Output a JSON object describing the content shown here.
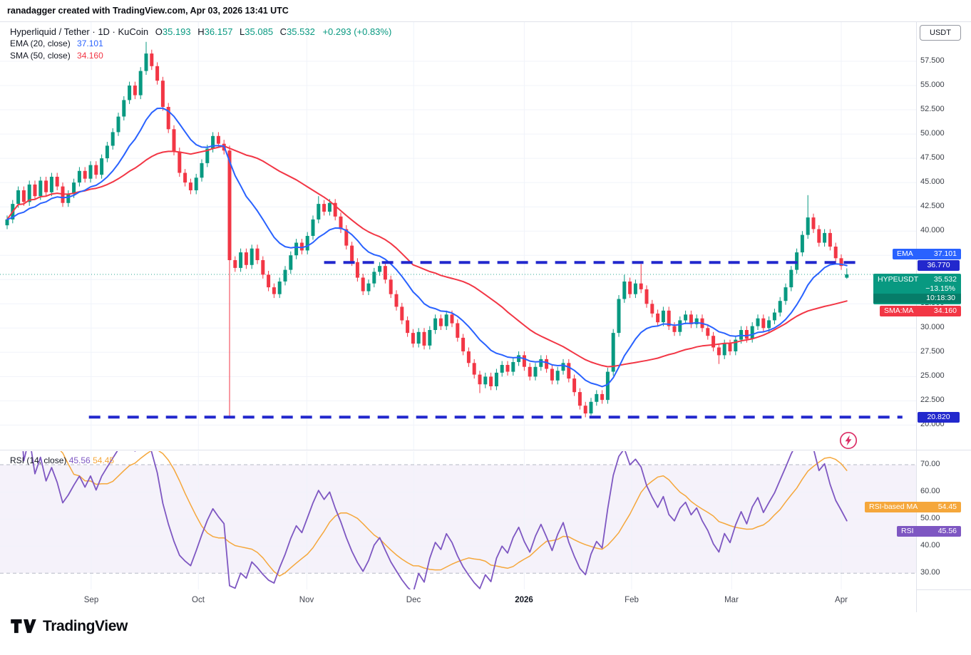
{
  "header": {
    "attribution": "ranadagger created with TradingView.com, Apr 03, 2026 13:41 UTC"
  },
  "legend": {
    "symbol_title": "Hyperliquid / Tether · 1D · KuCoin",
    "ohlc": {
      "o_label": "O",
      "o": "35.193",
      "h_label": "H",
      "h": "36.157",
      "l_label": "L",
      "l": "35.085",
      "c_label": "C",
      "c": "35.532",
      "change": "+0.293 (+0.83%)"
    },
    "ema": {
      "label": "EMA (20, close)",
      "value": "37.101"
    },
    "sma": {
      "label": "SMA (50, close)",
      "value": "34.160"
    }
  },
  "rsi_legend": {
    "label": "RSI (14, close)",
    "rsi_value": "45.56",
    "ma_value": "54.45"
  },
  "axis": {
    "currency": "USDT",
    "price_ticks": [
      "57.500",
      "55.000",
      "52.500",
      "50.000",
      "47.500",
      "45.000",
      "42.500",
      "40.000",
      "37.500",
      "35.000",
      "32.500",
      "30.000",
      "27.500",
      "25.000",
      "22.500",
      "20.000"
    ],
    "rsi_ticks": [
      "70.00",
      "60.00",
      "50.00",
      "40.00",
      "30.00"
    ],
    "tags": {
      "ema": {
        "label": "EMA",
        "value": "37.101"
      },
      "resistance": {
        "value": "36.770"
      },
      "last": {
        "symbol": "HYPEUSDT",
        "price": "35.532",
        "change": "−13.15%",
        "countdown": "10:18:30"
      },
      "sma": {
        "label": "SMA:MA",
        "value": "34.160"
      },
      "support": {
        "value": "20.820"
      },
      "rsi_ma": {
        "label": "RSI-based MA",
        "value": "54.45"
      },
      "rsi": {
        "label": "RSI",
        "value": "45.56"
      }
    }
  },
  "time_axis": {
    "months": [
      {
        "label": "Sep",
        "i": 15.1
      },
      {
        "label": "Oct",
        "i": 34.4
      },
      {
        "label": "Nov",
        "i": 53.9
      },
      {
        "label": "Dec",
        "i": 73.1
      },
      {
        "label": "2026",
        "i": 93.0,
        "major": true
      },
      {
        "label": "Feb",
        "i": 112.3
      },
      {
        "label": "Mar",
        "i": 130.3
      },
      {
        "label": "Apr",
        "i": 150.0
      }
    ]
  },
  "colors": {
    "up": "#089981",
    "down": "#F23645",
    "ema_line": "#2962FF",
    "sma_line": "#F23645",
    "sr_line": "#2228CD",
    "rsi_line": "#7E57C2",
    "rsi_ma_line": "#F5A73B",
    "flash": "#DB2E66",
    "grid": "#F0F3FA"
  },
  "footer": {
    "brand": "TradingView"
  },
  "chart_data": {
    "type": "candlestick",
    "symbol": "HYPEUSDT",
    "exchange": "KuCoin",
    "interval": "1D",
    "ylim": [
      17.46,
      61.54
    ],
    "price_gridlines": [
      57.5,
      55,
      52.5,
      50,
      47.5,
      45,
      42.5,
      40,
      37.5,
      35,
      32.5,
      30,
      27.5,
      25,
      22.5,
      20
    ],
    "last_price": 35.532,
    "overlays": [
      {
        "name": "EMA",
        "period": 20,
        "last": 37.101
      },
      {
        "name": "SMA",
        "period": 50,
        "last": 34.16
      }
    ],
    "ema_span_candles": 14,
    "sma_span_candles": 34,
    "drawn_lines": [
      {
        "name": "resistance",
        "price": 36.77,
        "from_i": 57,
        "to_i": 153.5
      },
      {
        "name": "support",
        "price": 20.82,
        "from_i": 14.7,
        "to_i": 161
      }
    ],
    "candles": [
      [
        40.6,
        41.6,
        40.2,
        41.2
      ],
      [
        41.2,
        43.2,
        40.8,
        42.8
      ],
      [
        42.8,
        44.6,
        42.4,
        44.2
      ],
      [
        44.2,
        44.6,
        42.6,
        43.0
      ],
      [
        43.0,
        45.2,
        42.6,
        44.8
      ],
      [
        44.8,
        45.2,
        43.2,
        43.6
      ],
      [
        43.6,
        45.6,
        43.2,
        45.2
      ],
      [
        45.2,
        45.6,
        43.6,
        44.0
      ],
      [
        44.0,
        46.0,
        43.6,
        45.6
      ],
      [
        45.6,
        46.0,
        44.2,
        44.6
      ],
      [
        44.6,
        45.0,
        42.5,
        42.9
      ],
      [
        42.9,
        44.2,
        42.5,
        43.8
      ],
      [
        43.8,
        45.4,
        43.4,
        45.0
      ],
      [
        45.0,
        46.6,
        44.6,
        46.2
      ],
      [
        46.2,
        46.6,
        45.0,
        45.4
      ],
      [
        45.4,
        47.2,
        45.0,
        46.8
      ],
      [
        46.8,
        47.2,
        45.4,
        45.8
      ],
      [
        45.8,
        47.9,
        45.4,
        47.5
      ],
      [
        47.5,
        49.2,
        47.1,
        48.8
      ],
      [
        48.8,
        50.6,
        48.4,
        50.2
      ],
      [
        50.2,
        52.2,
        49.8,
        51.8
      ],
      [
        51.8,
        53.9,
        51.4,
        53.5
      ],
      [
        53.5,
        55.4,
        53.1,
        55.0
      ],
      [
        55.0,
        55.4,
        53.6,
        54.0
      ],
      [
        54.0,
        56.9,
        53.6,
        56.5
      ],
      [
        56.5,
        59.5,
        56.1,
        58.3
      ],
      [
        58.3,
        58.7,
        56.6,
        57.0
      ],
      [
        57.0,
        57.4,
        55.1,
        55.5
      ],
      [
        55.5,
        55.9,
        52.4,
        52.8
      ],
      [
        52.8,
        53.2,
        50.1,
        50.5
      ],
      [
        50.5,
        50.9,
        47.8,
        48.2
      ],
      [
        48.2,
        48.6,
        45.6,
        46.0
      ],
      [
        46.0,
        46.4,
        44.6,
        45.0
      ],
      [
        45.0,
        45.4,
        43.8,
        44.2
      ],
      [
        44.2,
        45.9,
        43.8,
        45.5
      ],
      [
        45.5,
        47.4,
        45.1,
        47.0
      ],
      [
        47.0,
        48.9,
        46.6,
        48.5
      ],
      [
        48.5,
        50.2,
        48.1,
        49.8
      ],
      [
        49.8,
        50.2,
        48.6,
        49.0
      ],
      [
        49.0,
        49.4,
        47.9,
        48.3
      ],
      [
        48.3,
        48.8,
        20.9,
        37.0
      ],
      [
        37.0,
        37.4,
        35.8,
        36.2
      ],
      [
        36.2,
        38.2,
        35.8,
        37.8
      ],
      [
        37.8,
        38.2,
        36.1,
        36.5
      ],
      [
        36.5,
        38.6,
        36.1,
        38.2
      ],
      [
        38.2,
        38.6,
        36.6,
        37.0
      ],
      [
        37.0,
        37.4,
        35.1,
        35.5
      ],
      [
        35.5,
        35.9,
        33.8,
        34.2
      ],
      [
        34.2,
        34.6,
        33.1,
        33.5
      ],
      [
        33.5,
        35.2,
        33.1,
        34.8
      ],
      [
        34.8,
        36.4,
        34.4,
        36.0
      ],
      [
        36.0,
        37.9,
        35.6,
        37.5
      ],
      [
        37.5,
        39.2,
        37.1,
        38.8
      ],
      [
        38.8,
        39.2,
        37.6,
        38.0
      ],
      [
        38.0,
        39.9,
        37.6,
        39.5
      ],
      [
        39.5,
        41.6,
        39.1,
        41.2
      ],
      [
        41.2,
        43.6,
        40.8,
        42.8
      ],
      [
        42.8,
        43.2,
        41.6,
        42.0
      ],
      [
        42.0,
        43.3,
        41.6,
        42.9
      ],
      [
        42.9,
        43.3,
        41.1,
        41.5
      ],
      [
        41.5,
        41.9,
        39.8,
        40.2
      ],
      [
        40.2,
        40.6,
        38.1,
        38.5
      ],
      [
        38.5,
        38.9,
        36.4,
        36.8
      ],
      [
        36.8,
        37.2,
        34.8,
        35.2
      ],
      [
        35.2,
        35.6,
        33.4,
        33.8
      ],
      [
        33.8,
        35.0,
        33.4,
        34.6
      ],
      [
        34.6,
        36.2,
        34.2,
        35.8
      ],
      [
        35.8,
        36.8,
        35.4,
        36.4
      ],
      [
        36.4,
        36.8,
        34.6,
        35.0
      ],
      [
        35.0,
        35.4,
        33.1,
        33.5
      ],
      [
        33.5,
        33.9,
        31.8,
        32.2
      ],
      [
        32.2,
        32.6,
        30.4,
        30.8
      ],
      [
        30.8,
        31.2,
        29.1,
        29.5
      ],
      [
        29.5,
        29.9,
        28.0,
        28.4
      ],
      [
        28.4,
        30.0,
        28.0,
        29.6
      ],
      [
        29.6,
        30.0,
        27.8,
        28.2
      ],
      [
        28.2,
        30.2,
        27.8,
        29.8
      ],
      [
        29.8,
        31.4,
        29.4,
        31.0
      ],
      [
        31.0,
        31.4,
        29.8,
        30.2
      ],
      [
        30.2,
        31.8,
        29.8,
        31.4
      ],
      [
        31.4,
        31.8,
        30.1,
        30.5
      ],
      [
        30.5,
        30.9,
        28.6,
        29.0
      ],
      [
        29.0,
        29.4,
        27.2,
        27.6
      ],
      [
        27.6,
        28.0,
        26.0,
        26.4
      ],
      [
        26.4,
        26.8,
        24.8,
        25.2
      ],
      [
        25.2,
        25.6,
        23.3,
        24.2
      ],
      [
        24.2,
        25.4,
        23.8,
        25.0
      ],
      [
        25.0,
        25.4,
        23.6,
        24.0
      ],
      [
        24.0,
        25.8,
        23.6,
        25.4
      ],
      [
        25.4,
        26.6,
        25.0,
        26.2
      ],
      [
        26.2,
        26.6,
        25.1,
        25.5
      ],
      [
        25.5,
        26.9,
        25.1,
        26.5
      ],
      [
        26.5,
        27.6,
        26.1,
        27.2
      ],
      [
        27.2,
        27.6,
        25.6,
        26.0
      ],
      [
        26.0,
        26.4,
        24.6,
        25.0
      ],
      [
        25.0,
        26.4,
        24.6,
        26.0
      ],
      [
        26.0,
        27.2,
        25.6,
        26.8
      ],
      [
        26.8,
        27.2,
        25.4,
        25.8
      ],
      [
        25.8,
        26.2,
        24.2,
        24.6
      ],
      [
        24.6,
        26.0,
        24.2,
        25.6
      ],
      [
        25.6,
        26.8,
        25.2,
        26.4
      ],
      [
        26.4,
        26.8,
        24.4,
        24.8
      ],
      [
        24.8,
        25.2,
        23.0,
        23.4
      ],
      [
        23.4,
        23.8,
        21.6,
        22.0
      ],
      [
        22.0,
        22.4,
        20.8,
        21.2
      ],
      [
        21.2,
        22.8,
        21.0,
        22.4
      ],
      [
        22.4,
        23.6,
        22.0,
        23.2
      ],
      [
        23.2,
        23.6,
        22.2,
        22.6
      ],
      [
        22.6,
        25.9,
        22.2,
        25.5
      ],
      [
        25.5,
        29.9,
        25.1,
        29.5
      ],
      [
        29.5,
        33.4,
        29.1,
        33.0
      ],
      [
        33.0,
        35.5,
        32.6,
        34.8
      ],
      [
        34.8,
        35.2,
        33.1,
        33.5
      ],
      [
        33.5,
        35.0,
        33.1,
        34.6
      ],
      [
        34.6,
        36.6,
        33.6,
        34.0
      ],
      [
        34.0,
        34.4,
        32.1,
        32.5
      ],
      [
        32.5,
        32.9,
        31.1,
        31.5
      ],
      [
        31.5,
        31.9,
        30.2,
        30.6
      ],
      [
        30.6,
        32.2,
        30.2,
        31.8
      ],
      [
        31.8,
        32.2,
        29.8,
        30.2
      ],
      [
        30.2,
        30.6,
        29.2,
        29.6
      ],
      [
        29.6,
        31.2,
        29.2,
        30.8
      ],
      [
        30.8,
        31.8,
        30.4,
        31.4
      ],
      [
        31.4,
        31.8,
        30.0,
        30.4
      ],
      [
        30.4,
        31.4,
        30.0,
        31.0
      ],
      [
        31.0,
        31.4,
        29.6,
        30.0
      ],
      [
        30.0,
        30.4,
        28.8,
        29.2
      ],
      [
        29.2,
        29.6,
        27.6,
        28.0
      ],
      [
        28.0,
        28.4,
        26.3,
        27.2
      ],
      [
        27.2,
        28.8,
        26.8,
        28.4
      ],
      [
        28.4,
        28.8,
        27.2,
        27.6
      ],
      [
        27.6,
        29.2,
        27.2,
        28.8
      ],
      [
        28.8,
        30.2,
        28.4,
        29.8
      ],
      [
        29.8,
        30.2,
        28.5,
        28.9
      ],
      [
        28.9,
        30.6,
        28.5,
        30.2
      ],
      [
        30.2,
        31.4,
        29.8,
        31.0
      ],
      [
        31.0,
        31.4,
        29.6,
        30.0
      ],
      [
        30.0,
        31.2,
        29.6,
        30.8
      ],
      [
        30.8,
        32.0,
        30.4,
        31.6
      ],
      [
        31.6,
        33.2,
        31.2,
        32.8
      ],
      [
        32.8,
        34.6,
        32.4,
        34.2
      ],
      [
        34.2,
        36.4,
        33.8,
        36.0
      ],
      [
        36.0,
        38.2,
        35.6,
        37.8
      ],
      [
        37.8,
        40.0,
        37.4,
        39.6
      ],
      [
        39.6,
        43.7,
        39.2,
        41.4
      ],
      [
        41.4,
        41.8,
        39.8,
        40.2
      ],
      [
        40.2,
        40.6,
        38.4,
        38.8
      ],
      [
        38.8,
        40.2,
        38.4,
        39.8
      ],
      [
        39.8,
        40.2,
        38.0,
        38.4
      ],
      [
        38.4,
        38.8,
        36.8,
        37.2
      ],
      [
        37.2,
        37.6,
        36.0,
        36.4
      ],
      [
        35.193,
        36.157,
        35.085,
        35.532
      ]
    ],
    "rsi": {
      "period": 14,
      "ma_period": 14,
      "span_candles": 10,
      "ma_span_candles": 10,
      "ylim": [
        24,
        75
      ],
      "band": [
        30,
        70
      ],
      "levels": [
        70,
        50,
        30
      ],
      "last": 45.56,
      "ma_last": 54.45
    }
  }
}
